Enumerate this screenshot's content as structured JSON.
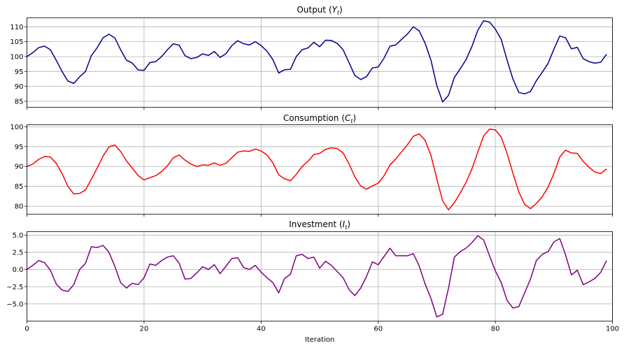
{
  "chart_data": [
    {
      "type": "line",
      "title": "Output",
      "title_symbol": "Y",
      "title_subscript": "t",
      "color": "#00008b",
      "xlim": [
        0,
        100
      ],
      "ylim": [
        83,
        113
      ],
      "yticks": [
        85,
        90,
        95,
        100,
        105,
        110
      ],
      "ytick_labels": [
        "85",
        "90",
        "95",
        "100",
        "105",
        "110"
      ],
      "grid": true,
      "values": [
        100.0,
        101.3,
        103.0,
        103.5,
        102.3,
        98.8,
        95.0,
        91.8,
        91.0,
        93.2,
        95.0,
        100.3,
        103.0,
        106.3,
        107.5,
        106.3,
        102.3,
        98.8,
        97.8,
        95.5,
        95.4,
        98.0,
        98.3,
        100.0,
        102.3,
        104.3,
        103.8,
        100.3,
        99.3,
        99.7,
        100.9,
        100.4,
        101.7,
        99.7,
        101.0,
        103.7,
        105.3,
        104.3,
        103.9,
        105.0,
        103.7,
        101.8,
        99.0,
        94.5,
        95.6,
        95.7,
        100.0,
        102.3,
        102.9,
        104.8,
        103.3,
        105.5,
        105.4,
        104.4,
        102.3,
        98.0,
        93.7,
        92.3,
        93.3,
        96.2,
        96.5,
        99.5,
        103.5,
        103.9,
        105.8,
        107.6,
        110.0,
        108.6,
        104.5,
        98.8,
        90.3,
        84.8,
        87.0,
        93.0,
        95.9,
        99.0,
        103.4,
        108.8,
        112.0,
        111.6,
        109.2,
        105.8,
        98.8,
        92.5,
        88.0,
        87.5,
        88.3,
        91.9,
        94.7,
        97.7,
        102.5,
        106.9,
        106.3,
        102.6,
        103.1,
        99.3,
        98.3,
        97.8,
        98.1,
        100.8
      ]
    },
    {
      "type": "line",
      "title": "Consumption",
      "title_symbol": "C",
      "title_subscript": "t",
      "color": "#ff0000",
      "xlim": [
        0,
        100
      ],
      "ylim": [
        78,
        100.5
      ],
      "yticks": [
        80,
        85,
        90,
        95,
        100
      ],
      "ytick_labels": [
        "80",
        "85",
        "90",
        "95",
        "100"
      ],
      "grid": true,
      "values": [
        90.0,
        90.6,
        91.8,
        92.5,
        92.4,
        90.8,
        88.2,
        85.0,
        83.1,
        83.2,
        84.1,
        86.8,
        89.6,
        92.6,
        94.9,
        95.4,
        93.8,
        91.4,
        89.6,
        87.7,
        86.6,
        87.2,
        87.7,
        88.7,
        90.2,
        92.2,
        92.9,
        91.6,
        90.6,
        90.0,
        90.4,
        90.3,
        90.9,
        90.3,
        90.8,
        92.2,
        93.6,
        93.9,
        93.8,
        94.4,
        93.9,
        92.9,
        90.9,
        87.9,
        86.9,
        86.4,
        88.0,
        90.0,
        91.3,
        93.0,
        93.3,
        94.3,
        94.7,
        94.5,
        93.4,
        90.7,
        87.4,
        85.1,
        84.3,
        85.1,
        85.8,
        87.7,
        90.4,
        91.9,
        93.7,
        95.5,
        97.6,
        98.2,
        96.6,
        92.8,
        86.9,
        81.3,
        79.1,
        80.9,
        83.3,
        86.0,
        89.4,
        93.6,
        97.7,
        99.4,
        99.2,
        97.4,
        93.3,
        88.3,
        83.6,
        80.5,
        79.4,
        80.7,
        82.4,
        84.8,
        88.2,
        92.4,
        94.1,
        93.4,
        93.3,
        91.3,
        89.8,
        88.6,
        88.2,
        89.4
      ]
    },
    {
      "type": "line",
      "title": "Investment",
      "title_symbol": "I",
      "title_subscript": "t",
      "color": "#800080",
      "xlim": [
        0,
        100
      ],
      "ylim": [
        -7.5,
        5.5
      ],
      "yticks": [
        -5.0,
        -2.5,
        0.0,
        2.5,
        5.0
      ],
      "ytick_labels": [
        "−5.0",
        "−2.5",
        "0.0",
        "2.5",
        "5.0"
      ],
      "grid": true,
      "xticks": [
        0,
        20,
        40,
        60,
        80,
        100
      ],
      "xtick_labels": [
        "0",
        "20",
        "40",
        "60",
        "80",
        "100"
      ],
      "xlabel": "Iteration",
      "values": [
        0.0,
        0.6,
        1.3,
        1.0,
        -0.1,
        -2.1,
        -3.0,
        -3.2,
        -2.2,
        0.0,
        0.9,
        3.3,
        3.2,
        3.5,
        2.5,
        0.5,
        -1.9,
        -2.7,
        -2.0,
        -2.2,
        -1.2,
        0.8,
        0.6,
        1.3,
        1.8,
        2.0,
        0.9,
        -1.4,
        -1.3,
        -0.5,
        0.4,
        0.0,
        0.7,
        -0.6,
        0.5,
        1.6,
        1.7,
        0.3,
        0.0,
        0.6,
        -0.4,
        -1.2,
        -1.9,
        -3.4,
        -1.3,
        -0.7,
        2.0,
        2.2,
        1.6,
        1.8,
        0.2,
        1.2,
        0.6,
        -0.3,
        -1.2,
        -2.9,
        -3.8,
        -2.7,
        -1.0,
        1.1,
        0.7,
        1.9,
        3.1,
        2.0,
        2.0,
        2.0,
        2.3,
        0.5,
        -2.1,
        -4.2,
        -6.9,
        -6.5,
        -2.7,
        1.8,
        2.6,
        3.1,
        3.9,
        4.9,
        4.3,
        2.0,
        -0.2,
        -1.9,
        -4.5,
        -5.6,
        -5.4,
        -3.4,
        -1.4,
        1.3,
        2.2,
        2.6,
        4.0,
        4.5,
        2.1,
        -0.8,
        -0.1,
        -2.2,
        -1.8,
        -1.3,
        -0.4,
        1.3
      ]
    }
  ]
}
